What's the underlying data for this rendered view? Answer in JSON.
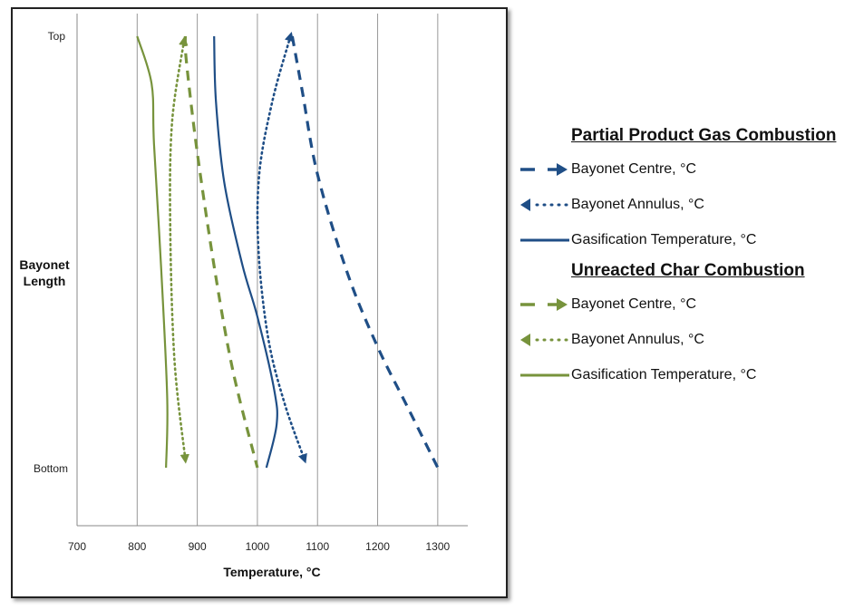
{
  "chart_data": {
    "type": "line",
    "title": "",
    "xlabel": "Temperature, °C",
    "ylabel": "Bayonet Length",
    "xlim": [
      700,
      1350
    ],
    "xticks": [
      "700",
      "800",
      "900",
      "1000",
      "1100",
      "1200",
      "1300"
    ],
    "yticks": [
      "Top",
      "Bottom"
    ],
    "y_note": "position along bayonet: 0 = Bottom, 1 = Top",
    "grid": "vertical",
    "legend_position": "right",
    "groups": [
      {
        "title": "Partial Product Gas Combustion",
        "color": "#1f4e86",
        "series": [
          {
            "name": "Bayonet Centre, °C",
            "style": "dashed",
            "arrow": "end",
            "points": [
              [
                1058,
                1
              ],
              [
                1075,
                0.87
              ],
              [
                1100,
                0.68
              ],
              [
                1150,
                0.45
              ],
              [
                1200,
                0.28
              ],
              [
                1250,
                0.14
              ],
              [
                1300,
                0
              ]
            ]
          },
          {
            "name": "Bayonet Annulus, °C",
            "style": "dotted",
            "arrow": "both",
            "points": [
              [
                1055,
                1
              ],
              [
                1025,
                0.85
              ],
              [
                1003,
                0.68
              ],
              [
                1002,
                0.5
              ],
              [
                1018,
                0.3
              ],
              [
                1045,
                0.15
              ],
              [
                1078,
                0.02
              ]
            ]
          },
          {
            "name": "Gasification Temperature, °C",
            "style": "solid",
            "arrow": "none",
            "points": [
              [
                928,
                1
              ],
              [
                931,
                0.85
              ],
              [
                945,
                0.66
              ],
              [
                975,
                0.47
              ],
              [
                1000,
                0.35
              ],
              [
                1028,
                0.18
              ],
              [
                1032,
                0.1
              ],
              [
                1015,
                0
              ]
            ]
          }
        ]
      },
      {
        "title": "Unreacted Char Combustion",
        "color": "#77933c",
        "series": [
          {
            "name": "Bayonet Centre, °C",
            "style": "dashed",
            "arrow": "end",
            "points": [
              [
                880,
                1
              ],
              [
                882,
                0.94
              ],
              [
                900,
                0.73
              ],
              [
                930,
                0.45
              ],
              [
                960,
                0.22
              ],
              [
                1000,
                0
              ]
            ]
          },
          {
            "name": "Bayonet Annulus, °C",
            "style": "dotted",
            "arrow": "both",
            "points": [
              [
                878,
                0.99
              ],
              [
                858,
                0.8
              ],
              [
                855,
                0.56
              ],
              [
                862,
                0.25
              ],
              [
                880,
                0.02
              ]
            ]
          },
          {
            "name": "Gasification Temperature, °C",
            "style": "solid",
            "arrow": "none",
            "points": [
              [
                800,
                1
              ],
              [
                824,
                0.89
              ],
              [
                828,
                0.75
              ],
              [
                840,
                0.46
              ],
              [
                850,
                0.16
              ],
              [
                848,
                0
              ]
            ]
          }
        ]
      }
    ]
  }
}
